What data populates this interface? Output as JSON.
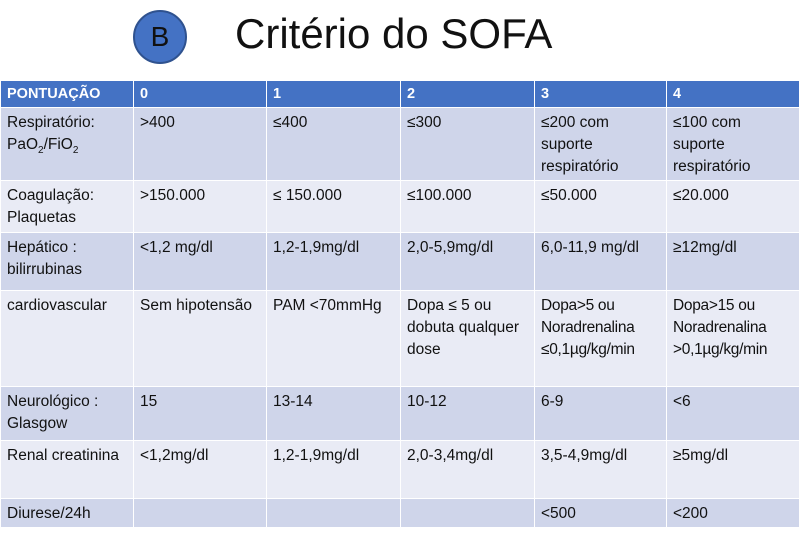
{
  "badge": "B",
  "title": "Critério do SOFA",
  "table": {
    "headers": [
      "PONTUAÇÃO",
      "0",
      "1",
      "2",
      "3",
      "4"
    ],
    "rows": [
      {
        "label": "Respiratório:",
        "label_formula": {
          "a": "PaO",
          "a_sub": "2",
          "sep": "/FiO",
          "b_sub": "2"
        },
        "cells": [
          "&gt;400",
          "≤400",
          "≤300",
          "≤200 com suporte respiratório",
          "≤100 com suporte respiratório"
        ]
      },
      {
        "label": "Coagulação: Plaquetas",
        "cells": [
          "&gt;150.000",
          "≤ 150.000",
          "≤100.000",
          "≤50.000",
          "≤20.000"
        ]
      },
      {
        "label": "Hepático : bilirrubinas",
        "cells": [
          "&lt;1,2 mg/dl",
          "1,2-1,9mg/dl",
          "2,0-5,9mg/dl",
          "6,0-11,9 mg/dl",
          "≥12mg/dl"
        ]
      },
      {
        "label": "cardiovascular",
        "cells": [
          "Sem hipotensão",
          "PAM &lt;70mmHg",
          "Dopa ≤ 5 ou dobuta qualquer dose",
          "Dopa&gt;5 ou Noradrenalina ≤0,1µg/kg/min",
          "Dopa&gt;15 ou Noradrenalina &gt;0,1µg/kg/min"
        ]
      },
      {
        "label": "Neurológico : Glasgow",
        "cells": [
          "15",
          "13-14",
          "10-12",
          "6-9",
          "&lt;6"
        ]
      },
      {
        "label": "Renal creatinina",
        "cells": [
          "&lt;1,2mg/dl",
          "1,2-1,9mg/dl",
          "2,0-3,4mg/dl",
          "3,5-4,9mg/dl",
          "≥5mg/dl"
        ]
      },
      {
        "label": "Diurese/24h",
        "cells": [
          "",
          "",
          "",
          "&lt;500",
          "&lt;200"
        ]
      }
    ]
  }
}
